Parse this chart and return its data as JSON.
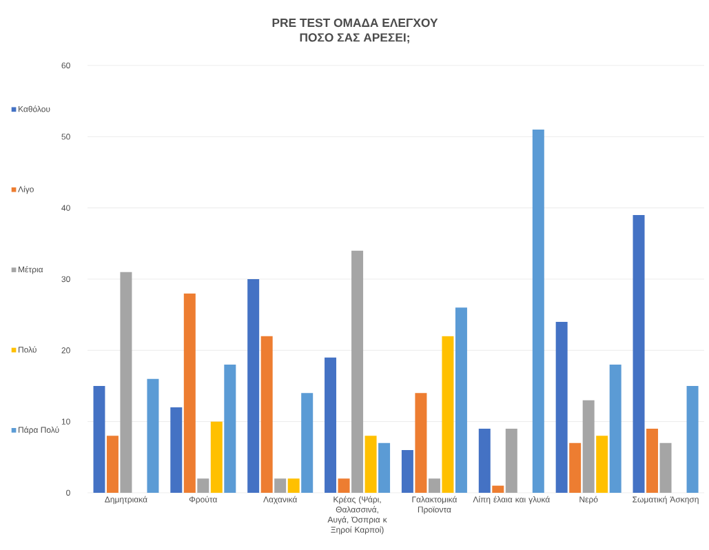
{
  "chart_data": {
    "type": "bar",
    "title": "PRE TEST ΟΜΑΔΑ ΕΛΕΓΧΟΥ",
    "subtitle": "ΠΟΣΟ ΣΑΣ ΑΡΕΣΕΙ;",
    "categories": [
      "Δημητριακά",
      "Φρούτα",
      "Λαχανικά",
      "Κρέας (Ψάρι, Θαλασσινά, Αυγά, Όσπρια κ Ξηροί Καρποί)",
      "Γαλακτομικά Προϊοντα",
      "Λίπη έλαια και γλυκά",
      "Νερό",
      "Σωματική Άσκηση"
    ],
    "series": [
      {
        "name": "Καθόλου",
        "color": "#4472c4",
        "values": [
          15,
          12,
          30,
          19,
          6,
          9,
          24,
          39
        ]
      },
      {
        "name": "Λίγο",
        "color": "#ed7d31",
        "values": [
          8,
          28,
          22,
          2,
          14,
          1,
          7,
          9
        ]
      },
      {
        "name": "Μέτρια",
        "color": "#a5a5a5",
        "values": [
          31,
          2,
          2,
          34,
          2,
          9,
          13,
          7
        ]
      },
      {
        "name": "Πολύ",
        "color": "#ffc000",
        "values": [
          0,
          10,
          2,
          8,
          22,
          0,
          8,
          0
        ]
      },
      {
        "name": "Πάρα Πολύ",
        "color": "#5b9bd5",
        "values": [
          16,
          18,
          14,
          7,
          26,
          51,
          18,
          15
        ]
      }
    ],
    "ylim": [
      0,
      60
    ],
    "yticks": [
      0,
      10,
      20,
      30,
      40,
      50,
      60
    ],
    "grid": "y",
    "legend": "left"
  }
}
